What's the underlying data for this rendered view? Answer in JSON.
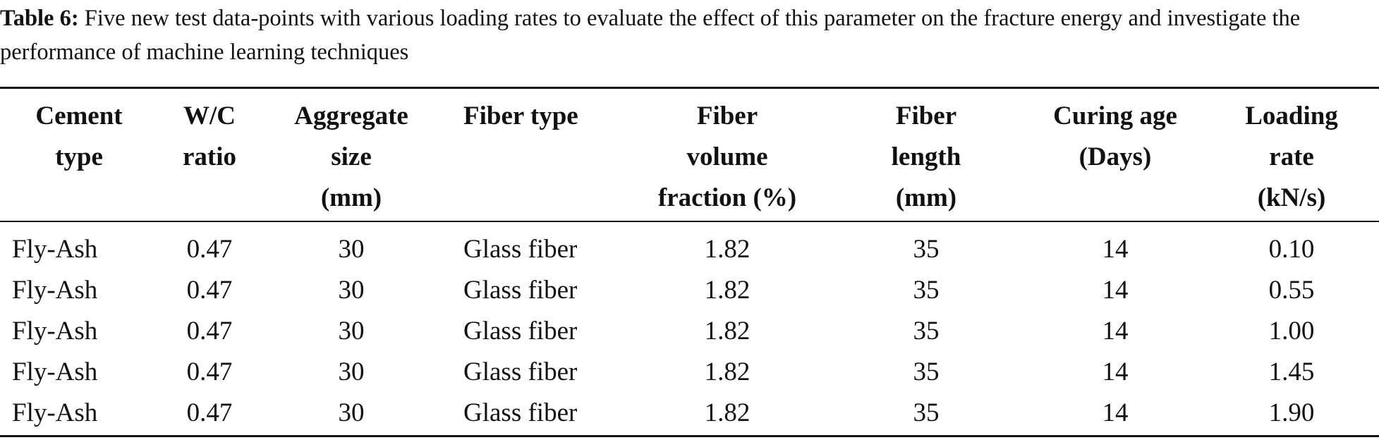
{
  "caption": {
    "label": "Table 6:",
    "text": "Five new test data-points with various loading rates to evaluate the effect of this parameter on the fracture energy and investigate the performance of machine learning techniques"
  },
  "table": {
    "headers": [
      "Cement\ntype",
      "W/C\nratio",
      "Aggregate\nsize\n(mm)",
      "Fiber type",
      "Fiber\nvolume\nfraction (%)",
      "Fiber\nlength\n(mm)",
      "Curing age\n(Days)",
      "Loading\nrate\n(kN/s)"
    ],
    "rows": [
      [
        "Fly-Ash",
        "0.47",
        "30",
        "Glass fiber",
        "1.82",
        "35",
        "14",
        "0.10"
      ],
      [
        "Fly-Ash",
        "0.47",
        "30",
        "Glass fiber",
        "1.82",
        "35",
        "14",
        "0.55"
      ],
      [
        "Fly-Ash",
        "0.47",
        "30",
        "Glass fiber",
        "1.82",
        "35",
        "14",
        "1.00"
      ],
      [
        "Fly-Ash",
        "0.47",
        "30",
        "Glass fiber",
        "1.82",
        "35",
        "14",
        "1.45"
      ],
      [
        "Fly-Ash",
        "0.47",
        "30",
        "Glass fiber",
        "1.82",
        "35",
        "14",
        "1.90"
      ]
    ]
  }
}
